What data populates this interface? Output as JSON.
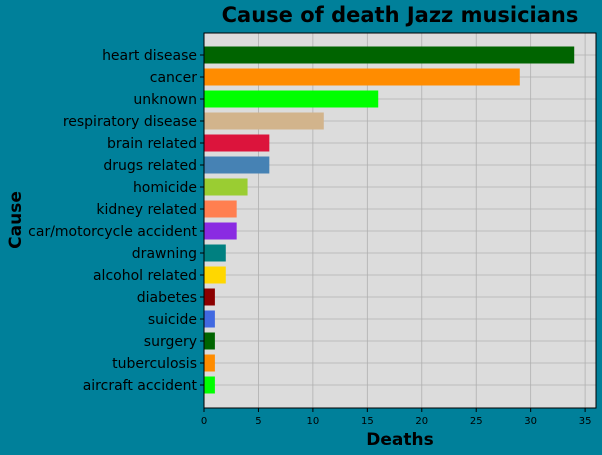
{
  "chart_data": {
    "type": "bar",
    "orientation": "horizontal",
    "title": "Cause of death Jazz musicians",
    "xlabel": "Deaths",
    "ylabel": "Cause",
    "xlim": [
      0,
      36
    ],
    "xticks": [
      "0",
      "5",
      "10",
      "15",
      "20",
      "25",
      "30",
      "35"
    ],
    "grid": true,
    "categories": [
      "heart disease",
      "cancer",
      "unknown",
      "respiratory disease",
      "brain related",
      "drugs related",
      "homicide",
      "kidney related",
      "car/motorcycle accident",
      "drawning",
      "alcohol related",
      "diabetes",
      "suicide",
      "surgery",
      "tuberculosis",
      "aircraft accident"
    ],
    "values": [
      34,
      29,
      16,
      11,
      6,
      6,
      4,
      3,
      3,
      2,
      2,
      1,
      1,
      1,
      1,
      1
    ],
    "colors": [
      "#006400",
      "#ff8c00",
      "#00ff00",
      "#d2b48c",
      "#dc143c",
      "#4682b4",
      "#9acd32",
      "#ff7f50",
      "#8a2be2",
      "#008080",
      "#ffd700",
      "#8b0000",
      "#4169e1",
      "#006400",
      "#ff8c00",
      "#00ff00"
    ],
    "plot_background": "#dcdcdc",
    "figure_background": "#00809a"
  }
}
